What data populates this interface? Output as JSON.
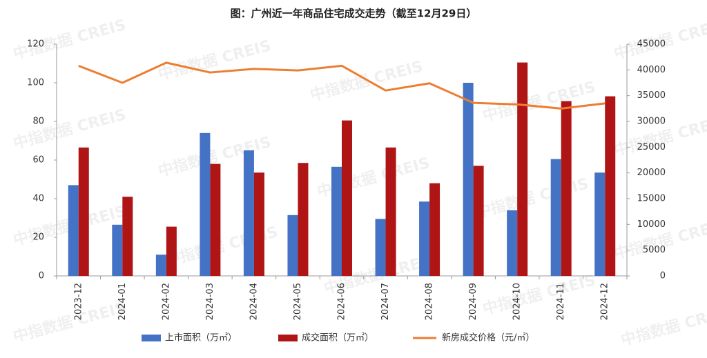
{
  "chart_data": {
    "type": "bar_line",
    "title": "图：广州近一年商品住宅成交走势（截至12月29日）",
    "watermark": "中指数据 CREIS",
    "categories": [
      "2023-12",
      "2024-01",
      "2024-02",
      "2024-03",
      "2024-04",
      "2024-05",
      "2024-06",
      "2024-07",
      "2024-08",
      "2024-09",
      "2024-10",
      "2024-11",
      "2024-12"
    ],
    "series": [
      {
        "name": "上市面积（万㎡）",
        "color": "#4472c4",
        "type": "bar",
        "values": [
          47,
          26.5,
          11,
          74,
          65,
          31.5,
          56.5,
          29.5,
          38.5,
          100,
          34,
          60.5,
          53.5
        ]
      },
      {
        "name": "成交面积（万㎡）",
        "color": "#b01515",
        "type": "bar",
        "values": [
          66.5,
          41,
          25.5,
          58,
          53.5,
          58.5,
          80.5,
          66.5,
          48,
          57,
          110.5,
          90.5,
          93
        ]
      },
      {
        "name": "新房成交价格（元/㎡）",
        "color": "#ed7d31",
        "type": "line",
        "axis": "y2",
        "values": [
          40800,
          37500,
          41400,
          39500,
          40200,
          39900,
          40800,
          36000,
          37400,
          33600,
          33300,
          32500,
          33500
        ]
      }
    ],
    "ylim": [
      0,
      120
    ],
    "yticks": [
      0,
      20,
      40,
      60,
      80,
      100,
      120
    ],
    "y2lim": [
      0,
      45000
    ],
    "y2ticks": [
      0,
      5000,
      10000,
      15000,
      20000,
      25000,
      30000,
      35000,
      40000,
      45000
    ],
    "legend": "bottom"
  }
}
